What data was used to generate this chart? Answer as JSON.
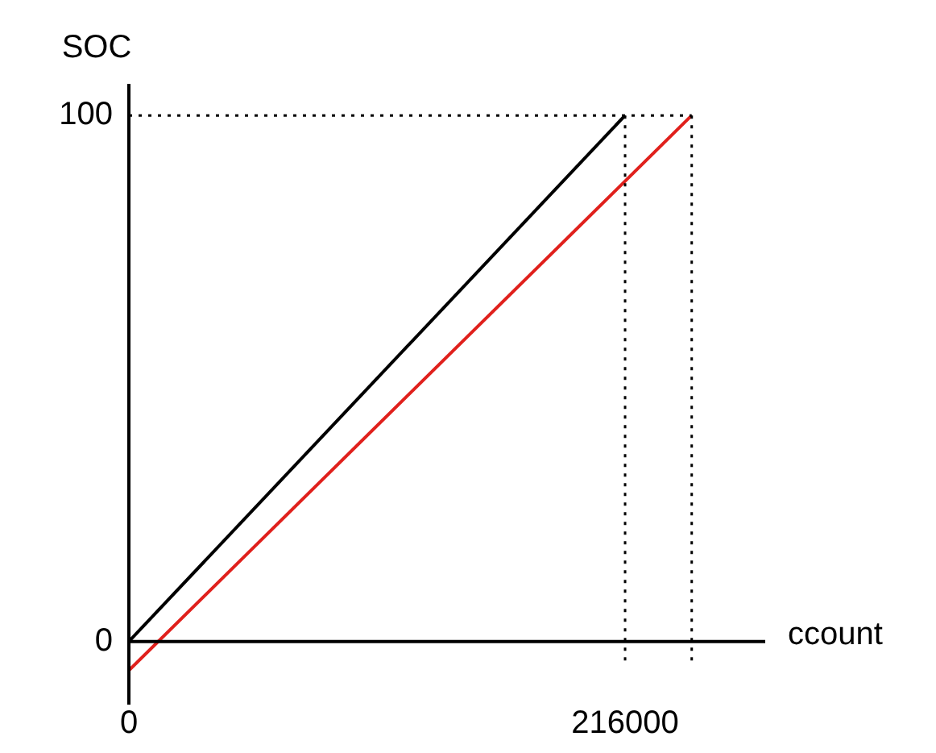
{
  "chart_data": {
    "type": "line",
    "xlabel": "ccount",
    "ylabel": "SOC",
    "xlim": [
      0,
      277000
    ],
    "ylim": [
      -12,
      106
    ],
    "xticks": [
      0,
      216000
    ],
    "yticks": [
      0,
      100
    ],
    "series": [
      {
        "color": "#000000",
        "x": [
          0,
          216000
        ],
        "values": [
          0,
          100
        ]
      },
      {
        "color": "#e0201c",
        "x": [
          0,
          245000
        ],
        "values": [
          -5.5,
          100
        ]
      }
    ],
    "ref_lines": [
      {
        "axis": "y",
        "value": 100,
        "line_style": "dotted",
        "color": "#000000"
      },
      {
        "axis": "x",
        "value": 216000,
        "line_style": "dotted",
        "color": "#000000"
      },
      {
        "axis": "x",
        "value": 245000,
        "line_style": "dotted",
        "color": "#000000"
      }
    ],
    "grid": false,
    "legend": false,
    "marker": "none",
    "line_style": "solid"
  }
}
